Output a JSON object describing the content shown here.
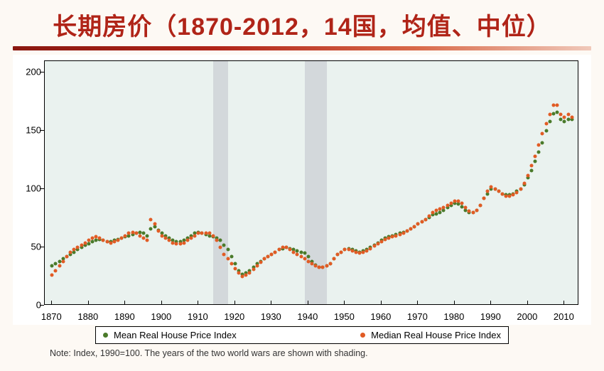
{
  "title": "长期房价（1870-2012，14国，均值、中位）",
  "note": "Note: Index, 1990=100. The years of the two world wars are shown with shading.",
  "chart": {
    "type": "scatter",
    "background_color": "#eaf2ef",
    "frame_color": "#000000",
    "shade_color": "#d3d8db",
    "war_shades": [
      [
        1914,
        1918
      ],
      [
        1939,
        1945
      ]
    ],
    "xlim": [
      1868,
      2014
    ],
    "ylim": [
      0,
      210
    ],
    "xticks": [
      1870,
      1880,
      1890,
      1900,
      1910,
      1920,
      1930,
      1940,
      1950,
      1960,
      1970,
      1980,
      1990,
      2000,
      2010
    ],
    "yticks": [
      0,
      50,
      100,
      150,
      200
    ],
    "tick_fontsize": 13,
    "marker_size": 5,
    "series": [
      {
        "label": "Mean Real House Price Index",
        "color": "#4a7a2a",
        "years": [
          1870,
          1871,
          1872,
          1873,
          1874,
          1875,
          1876,
          1877,
          1878,
          1879,
          1880,
          1881,
          1882,
          1883,
          1884,
          1885,
          1886,
          1887,
          1888,
          1889,
          1890,
          1891,
          1892,
          1893,
          1894,
          1895,
          1896,
          1897,
          1898,
          1899,
          1900,
          1901,
          1902,
          1903,
          1904,
          1905,
          1906,
          1907,
          1908,
          1909,
          1910,
          1911,
          1912,
          1913,
          1914,
          1915,
          1916,
          1917,
          1918,
          1919,
          1920,
          1921,
          1922,
          1923,
          1924,
          1925,
          1926,
          1927,
          1928,
          1929,
          1930,
          1931,
          1932,
          1933,
          1934,
          1935,
          1936,
          1937,
          1938,
          1939,
          1940,
          1941,
          1942,
          1943,
          1944,
          1945,
          1946,
          1947,
          1948,
          1949,
          1950,
          1951,
          1952,
          1953,
          1954,
          1955,
          1956,
          1957,
          1958,
          1959,
          1960,
          1961,
          1962,
          1963,
          1964,
          1965,
          1966,
          1967,
          1968,
          1969,
          1970,
          1971,
          1972,
          1973,
          1974,
          1975,
          1976,
          1977,
          1978,
          1979,
          1980,
          1981,
          1982,
          1983,
          1984,
          1985,
          1986,
          1987,
          1988,
          1989,
          1990,
          1991,
          1992,
          1993,
          1994,
          1995,
          1996,
          1997,
          1998,
          1999,
          2000,
          2001,
          2002,
          2003,
          2004,
          2005,
          2006,
          2007,
          2008,
          2009,
          2010,
          2011,
          2012
        ],
        "values": [
          34,
          36,
          38,
          40,
          42,
          44,
          46,
          48,
          50,
          52,
          53,
          55,
          56,
          57,
          56,
          55,
          55,
          56,
          57,
          58,
          59,
          60,
          61,
          62,
          63,
          62,
          60,
          66,
          68,
          65,
          62,
          60,
          58,
          56,
          55,
          55,
          56,
          58,
          60,
          62,
          63,
          62,
          61,
          60,
          59,
          58,
          56,
          52,
          48,
          42,
          36,
          30,
          27,
          28,
          30,
          33,
          36,
          38,
          40,
          42,
          44,
          46,
          48,
          49,
          50,
          49,
          48,
          47,
          46,
          45,
          42,
          38,
          35,
          33,
          33,
          34,
          36,
          40,
          44,
          46,
          48,
          49,
          48,
          47,
          46,
          47,
          48,
          50,
          52,
          54,
          56,
          58,
          59,
          60,
          61,
          62,
          63,
          64,
          66,
          68,
          70,
          72,
          74,
          76,
          78,
          79,
          80,
          82,
          84,
          86,
          88,
          87,
          85,
          82,
          80,
          80,
          82,
          86,
          92,
          96,
          100,
          100,
          98,
          96,
          95,
          95,
          96,
          98,
          100,
          104,
          110,
          116,
          124,
          132,
          140,
          150,
          158,
          165,
          166,
          160,
          158,
          160,
          160
        ]
      },
      {
        "label": "Median Real House Price Index",
        "color": "#e15b24",
        "years": [
          1870,
          1871,
          1872,
          1873,
          1874,
          1875,
          1876,
          1877,
          1878,
          1879,
          1880,
          1881,
          1882,
          1883,
          1884,
          1885,
          1886,
          1887,
          1888,
          1889,
          1890,
          1891,
          1892,
          1893,
          1894,
          1895,
          1896,
          1897,
          1898,
          1899,
          1900,
          1901,
          1902,
          1903,
          1904,
          1905,
          1906,
          1907,
          1908,
          1909,
          1910,
          1911,
          1912,
          1913,
          1914,
          1915,
          1916,
          1917,
          1918,
          1919,
          1920,
          1921,
          1922,
          1923,
          1924,
          1925,
          1926,
          1927,
          1928,
          1929,
          1930,
          1931,
          1932,
          1933,
          1934,
          1935,
          1936,
          1937,
          1938,
          1939,
          1940,
          1941,
          1942,
          1943,
          1944,
          1945,
          1946,
          1947,
          1948,
          1949,
          1950,
          1951,
          1952,
          1953,
          1954,
          1955,
          1956,
          1957,
          1958,
          1959,
          1960,
          1961,
          1962,
          1963,
          1964,
          1965,
          1966,
          1967,
          1968,
          1969,
          1970,
          1971,
          1972,
          1973,
          1974,
          1975,
          1976,
          1977,
          1978,
          1979,
          1980,
          1981,
          1982,
          1983,
          1984,
          1985,
          1986,
          1987,
          1988,
          1989,
          1990,
          1991,
          1992,
          1993,
          1994,
          1995,
          1996,
          1997,
          1998,
          1999,
          2000,
          2001,
          2002,
          2003,
          2004,
          2005,
          2006,
          2007,
          2008,
          2009,
          2010,
          2011,
          2012
        ],
        "values": [
          26,
          30,
          34,
          38,
          42,
          46,
          48,
          50,
          52,
          54,
          56,
          58,
          59,
          58,
          56,
          55,
          54,
          55,
          56,
          58,
          60,
          62,
          63,
          62,
          60,
          58,
          56,
          74,
          70,
          64,
          60,
          58,
          56,
          54,
          53,
          53,
          54,
          56,
          58,
          60,
          62,
          62,
          62,
          62,
          60,
          56,
          50,
          44,
          40,
          36,
          32,
          28,
          25,
          26,
          28,
          31,
          34,
          37,
          40,
          42,
          44,
          46,
          48,
          50,
          50,
          48,
          46,
          44,
          42,
          40,
          38,
          36,
          34,
          33,
          33,
          34,
          36,
          40,
          44,
          46,
          48,
          48,
          47,
          46,
          45,
          46,
          47,
          49,
          51,
          53,
          55,
          57,
          58,
          59,
          60,
          61,
          62,
          64,
          66,
          68,
          70,
          72,
          74,
          77,
          80,
          82,
          83,
          84,
          86,
          88,
          90,
          90,
          88,
          84,
          81,
          80,
          82,
          86,
          92,
          98,
          102,
          100,
          98,
          96,
          94,
          94,
          95,
          97,
          100,
          105,
          112,
          120,
          128,
          138,
          148,
          156,
          164,
          172,
          172,
          164,
          162,
          164,
          162
        ]
      }
    ],
    "legend": {
      "border_color": "#000000",
      "background": "#ffffff",
      "fontsize": 13
    }
  }
}
